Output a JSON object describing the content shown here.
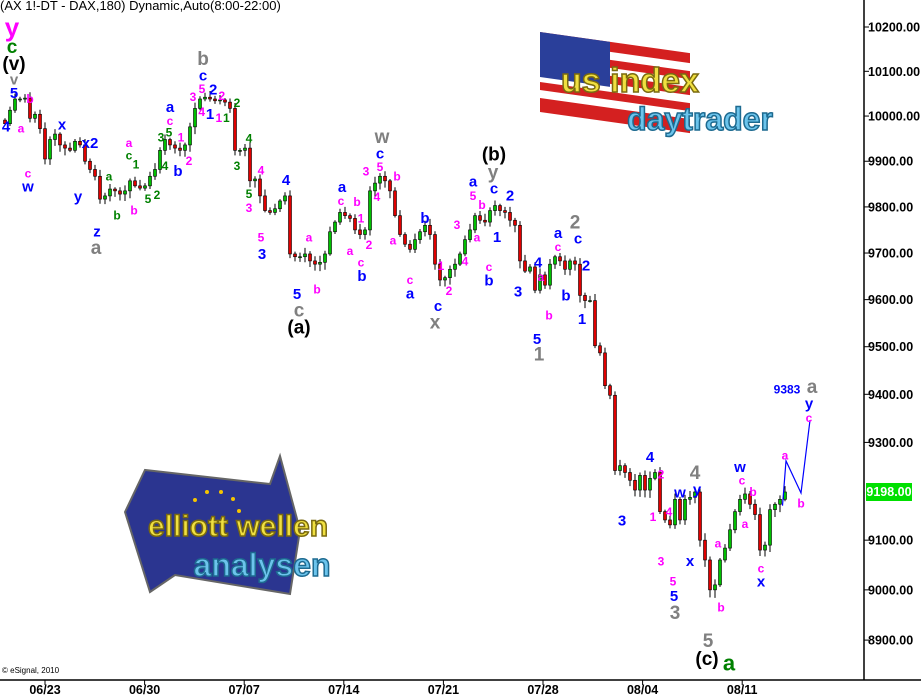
{
  "header": {
    "title": "(AX 1!-DT - DAX,180) Dynamic,Auto(8:00-22:00)"
  },
  "footer": {
    "copyright": "© eSignal, 2010"
  },
  "logos": {
    "us": {
      "line1": "us index",
      "line2": "daytrader"
    },
    "eu": {
      "line1": "elliott wellen",
      "line2": "analysen"
    }
  },
  "colors": {
    "blue": "#0000ff",
    "magenta": "#ff00ff",
    "green": "#008000",
    "gray": "#808080",
    "black": "#000000",
    "up": "#00c000",
    "down": "#e00000",
    "last_badge": "#00e000",
    "projection": "#0000ff"
  },
  "chart_data": {
    "type": "candlestick",
    "title": "",
    "y_scale": "log",
    "ylim": [
      8850,
      10230
    ],
    "y_ticks": [
      {
        "value": 10200,
        "label": "10200.00"
      },
      {
        "value": 10100,
        "label": "10100.00"
      },
      {
        "value": 10000,
        "label": "10000.00"
      },
      {
        "value": 9900,
        "label": "9900.00"
      },
      {
        "value": 9800,
        "label": "9800.00"
      },
      {
        "value": 9700,
        "label": "9700.00"
      },
      {
        "value": 9600,
        "label": "9600.00"
      },
      {
        "value": 9500,
        "label": "9500.00"
      },
      {
        "value": 9400,
        "label": "9400.00"
      },
      {
        "value": 9300,
        "label": "9300.00"
      },
      {
        "value": 9100,
        "label": "9100.00"
      },
      {
        "value": 9000,
        "label": "9000.00"
      },
      {
        "value": 8900,
        "label": "8900.00"
      }
    ],
    "x_ticks": [
      "06/23",
      "06/30",
      "07/07",
      "07/14",
      "07/21",
      "07/28",
      "08/04",
      "08/11"
    ],
    "last_price": {
      "value": 9198,
      "label": "9198.00"
    },
    "closes": [
      9983,
      10013,
      10038,
      10038,
      10040,
      9995,
      10004,
      9972,
      9905,
      9948,
      9960,
      9936,
      9929,
      9924,
      9944,
      9936,
      9900,
      9882,
      9867,
      9817,
      9824,
      9839,
      9835,
      9828,
      9835,
      9857,
      9846,
      9841,
      9846,
      9867,
      9882,
      9924,
      9948,
      9936,
      9929,
      9924,
      9936,
      9976,
      10017,
      10038,
      10042,
      10038,
      10034,
      10036,
      10031,
      10017,
      9924,
      9924,
      9929,
      9857,
      9861,
      9824,
      9792,
      9788,
      9796,
      9813,
      9824,
      9698,
      9692,
      9692,
      9698,
      9683,
      9676,
      9680,
      9698,
      9746,
      9767,
      9788,
      9781,
      9775,
      9750,
      9740,
      9750,
      9835,
      9852,
      9867,
      9857,
      9835,
      9781,
      9740,
      9719,
      9708,
      9729,
      9746,
      9760,
      9740,
      9676,
      9642,
      9647,
      9665,
      9676,
      9698,
      9729,
      9750,
      9781,
      9771,
      9767,
      9792,
      9803,
      9792,
      9788,
      9771,
      9760,
      9683,
      9661,
      9670,
      9620,
      9653,
      9631,
      9676,
      9692,
      9683,
      9665,
      9683,
      9676,
      9609,
      9598,
      9598,
      9502,
      9487,
      9418,
      9398,
      9242,
      9252,
      9238,
      9222,
      9202,
      9232,
      9202,
      9226,
      9238,
      9158,
      9141,
      9131,
      9183,
      9141,
      9183,
      9187,
      9198,
      9100,
      9060,
      9000,
      9010,
      9060,
      9084,
      9121,
      9158,
      9183,
      9194,
      9173,
      9152,
      9080,
      9090,
      9162,
      9173,
      9183,
      9198
    ],
    "projection": [
      [
        155.5,
        9170
      ],
      [
        156.2,
        9262
      ],
      [
        159.2,
        9196
      ],
      [
        161,
        9346
      ]
    ],
    "annotations": [
      [
        "y",
        "magenta",
        "xl",
        1.4,
        10227
      ],
      [
        "c",
        "green",
        "l",
        1.4,
        10175
      ],
      [
        "(v)",
        "black",
        "l",
        1.8,
        10132
      ],
      [
        "v",
        "gray",
        "m",
        1.8,
        10098
      ],
      [
        "5",
        "blue",
        "m",
        1.8,
        10063
      ],
      [
        "4",
        "blue",
        "m",
        0.2,
        9976
      ],
      [
        "a",
        "magenta",
        "s",
        3.2,
        9972
      ],
      [
        "b",
        "magenta",
        "s",
        5,
        10038
      ],
      [
        "c",
        "magenta",
        "s",
        4.6,
        9869
      ],
      [
        "w",
        "blue",
        "m",
        4.6,
        9847
      ],
      [
        "x",
        "blue",
        "m",
        11.4,
        9980
      ],
      [
        "x2",
        "blue",
        "m",
        17,
        9939
      ],
      [
        "y",
        "blue",
        "m",
        14.6,
        9822
      ],
      [
        "z",
        "blue",
        "m",
        18.4,
        9744
      ],
      [
        "a",
        "gray",
        "l",
        18.2,
        9712
      ],
      [
        "a",
        "green",
        "s",
        20.8,
        9867
      ],
      [
        "b",
        "green",
        "s",
        22.4,
        9781
      ],
      [
        "c",
        "green",
        "s",
        24.8,
        9917
      ],
      [
        "a",
        "magenta",
        "s",
        24.8,
        9936
      ],
      [
        "1",
        "green",
        "s",
        26.2,
        9893
      ],
      [
        "b",
        "magenta",
        "s",
        25.8,
        9792
      ],
      [
        "5",
        "green",
        "s",
        28.6,
        9817
      ],
      [
        "2",
        "green",
        "s",
        30.4,
        9826
      ],
      [
        "4",
        "green",
        "s",
        32,
        9889
      ],
      [
        "3",
        "green",
        "s",
        31.2,
        9952
      ],
      [
        "5",
        "green",
        "s",
        32.8,
        9972
      ],
      [
        "a",
        "blue",
        "m",
        33,
        10009
      ],
      [
        "c",
        "magenta",
        "s",
        33,
        9991
      ],
      [
        "1",
        "magenta",
        "s",
        35.2,
        9952
      ],
      [
        "b",
        "blue",
        "m",
        34.6,
        9878
      ],
      [
        "2",
        "magenta",
        "s",
        36.8,
        9900
      ],
      [
        "b",
        "gray",
        "l",
        39.6,
        10119
      ],
      [
        "c",
        "blue",
        "m",
        39.6,
        10092
      ],
      [
        "5",
        "magenta",
        "s",
        39.4,
        10065
      ],
      [
        "3",
        "magenta",
        "s",
        37.6,
        10043
      ],
      [
        "4",
        "magenta",
        "s",
        40,
        10009
      ],
      [
        "1",
        "blue",
        "m",
        41,
        10003
      ],
      [
        "2",
        "blue",
        "m",
        41.8,
        10058
      ],
      [
        "1",
        "magenta",
        "s",
        42.6,
        9996
      ],
      [
        "2",
        "magenta",
        "s",
        43.2,
        10045
      ],
      [
        "1",
        "green",
        "s",
        43.8,
        9996
      ],
      [
        "2",
        "green",
        "s",
        46.4,
        10029
      ],
      [
        "4",
        "green",
        "s",
        48.8,
        9950
      ],
      [
        "3",
        "green",
        "s",
        46.4,
        9889
      ],
      [
        "5",
        "green",
        "s",
        48.8,
        9828
      ],
      [
        "3",
        "magenta",
        "s",
        48.8,
        9798
      ],
      [
        "4",
        "magenta",
        "s",
        51.2,
        9880
      ],
      [
        "5",
        "magenta",
        "s",
        51.2,
        9734
      ],
      [
        "3",
        "blue",
        "m",
        51.4,
        9697
      ],
      [
        "4",
        "blue",
        "m",
        56.2,
        9858
      ],
      [
        "5",
        "blue",
        "m",
        58.4,
        9606
      ],
      [
        "c",
        "gray",
        "l",
        58.8,
        9576
      ],
      [
        "(a)",
        "black",
        "l",
        58.8,
        9543
      ],
      [
        "a",
        "magenta",
        "s",
        60.8,
        9734
      ],
      [
        "b",
        "magenta",
        "s",
        62.4,
        9622
      ],
      [
        "a",
        "blue",
        "m",
        67.4,
        9839
      ],
      [
        "c",
        "magenta",
        "s",
        67.2,
        9817
      ],
      [
        "b",
        "magenta",
        "s",
        70.4,
        9811
      ],
      [
        "1",
        "magenta",
        "s",
        71.2,
        9775
      ],
      [
        "a",
        "magenta",
        "s",
        69,
        9704
      ],
      [
        "2",
        "magenta",
        "s",
        72.8,
        9717
      ],
      [
        "c",
        "magenta",
        "s",
        71.2,
        9676
      ],
      [
        "b",
        "blue",
        "m",
        71.4,
        9653
      ],
      [
        "3",
        "magenta",
        "s",
        72.2,
        9878
      ],
      [
        "4",
        "magenta",
        "s",
        74.4,
        9822
      ],
      [
        "5",
        "magenta",
        "s",
        75,
        9893
      ],
      [
        "c",
        "blue",
        "m",
        75,
        9919
      ],
      [
        "w",
        "gray",
        "l",
        75.4,
        9943
      ],
      [
        "b",
        "magenta",
        "s",
        78.4,
        9867
      ],
      [
        "a",
        "magenta",
        "s",
        77.6,
        9727
      ],
      [
        "c",
        "magenta",
        "s",
        81,
        9640
      ],
      [
        "a",
        "blue",
        "m",
        81,
        9614
      ],
      [
        "b",
        "blue",
        "m",
        84,
        9775
      ],
      [
        "1",
        "magenta",
        "s",
        87.2,
        9672
      ],
      [
        "2",
        "magenta",
        "s",
        88.8,
        9618
      ],
      [
        "c",
        "blue",
        "m",
        86.6,
        9580
      ],
      [
        "x",
        "gray",
        "l",
        86,
        9555
      ],
      [
        "3",
        "magenta",
        "s",
        90.4,
        9761
      ],
      [
        "4",
        "magenta",
        "s",
        92,
        9682
      ],
      [
        "5",
        "magenta",
        "s",
        93.6,
        9828
      ],
      [
        "a",
        "blue",
        "m",
        93.6,
        9850
      ],
      [
        "b",
        "magenta",
        "s",
        95.4,
        9804
      ],
      [
        "a",
        "magenta",
        "s",
        94.4,
        9734
      ],
      [
        "c",
        "magenta",
        "s",
        96.8,
        9670
      ],
      [
        "b",
        "blue",
        "m",
        96.8,
        9640
      ],
      [
        "1",
        "blue",
        "m",
        98.4,
        9734
      ],
      [
        "c",
        "blue",
        "m",
        97.8,
        9839
      ],
      [
        "y",
        "gray",
        "l",
        97.6,
        9874
      ],
      [
        "(b)",
        "black",
        "l",
        97.8,
        9914
      ],
      [
        "2",
        "blue",
        "m",
        101,
        9824
      ],
      [
        "3",
        "blue",
        "m",
        102.6,
        9616
      ],
      [
        "4",
        "blue",
        "m",
        106.6,
        9676
      ],
      [
        "a",
        "magenta",
        "s",
        107.2,
        9651
      ],
      [
        "b",
        "magenta",
        "s",
        108.8,
        9566
      ],
      [
        "5",
        "blue",
        "m",
        106.4,
        9515
      ],
      [
        "1",
        "gray",
        "l",
        106.8,
        9482
      ],
      [
        "a",
        "blue",
        "m",
        110.6,
        9738
      ],
      [
        "c",
        "magenta",
        "s",
        110.6,
        9717
      ],
      [
        "b",
        "blue",
        "m",
        112.2,
        9608
      ],
      [
        "2",
        "gray",
        "l",
        114,
        9765
      ],
      [
        "c",
        "blue",
        "m",
        114.6,
        9730
      ],
      [
        "2",
        "blue",
        "m",
        116.2,
        9672
      ],
      [
        "1",
        "blue",
        "m",
        115.4,
        9558
      ],
      [
        "3",
        "blue",
        "m",
        123.4,
        9139
      ],
      [
        "4",
        "blue",
        "m",
        129,
        9269
      ],
      [
        "2",
        "magenta",
        "s",
        131.2,
        9234
      ],
      [
        "1",
        "magenta",
        "s",
        129.6,
        9147
      ],
      [
        "4",
        "magenta",
        "s",
        132.8,
        9157
      ],
      [
        "3",
        "magenta",
        "s",
        131.2,
        9057
      ],
      [
        "w",
        "blue",
        "m",
        135,
        9196
      ],
      [
        "4",
        "gray",
        "l",
        138,
        9234
      ],
      [
        "y",
        "blue",
        "m",
        138.4,
        9204
      ],
      [
        "x",
        "blue",
        "m",
        137,
        9057
      ],
      [
        "5",
        "magenta",
        "s",
        133.6,
        9017
      ],
      [
        "5",
        "blue",
        "m",
        133.8,
        8987
      ],
      [
        "3",
        "gray",
        "l",
        134,
        8953
      ],
      [
        "5",
        "gray",
        "l",
        140.6,
        8894
      ],
      [
        "(c)",
        "black",
        "l",
        140.4,
        8864
      ],
      [
        "a",
        "green",
        "xl2",
        144.8,
        8855
      ],
      [
        "a",
        "magenta",
        "s",
        142.6,
        9093
      ],
      [
        "b",
        "magenta",
        "s",
        143.2,
        8965
      ],
      [
        "w",
        "blue",
        "m",
        147,
        9248
      ],
      [
        "c",
        "magenta",
        "s",
        147.4,
        9222
      ],
      [
        "b",
        "magenta",
        "s",
        149.6,
        9198
      ],
      [
        "a",
        "magenta",
        "s",
        148,
        9133
      ],
      [
        "c",
        "magenta",
        "s",
        151.2,
        9039
      ],
      [
        "x",
        "blue",
        "m",
        151.2,
        9019
      ],
      [
        "a",
        "magenta",
        "s",
        156,
        9273
      ],
      [
        "b",
        "magenta",
        "s",
        159.2,
        9174
      ],
      [
        "y",
        "blue",
        "m",
        160.8,
        9382
      ],
      [
        "c",
        "magenta",
        "s",
        160.8,
        9351
      ],
      [
        "9383",
        "blue",
        "plain",
        156.4,
        9410
      ],
      [
        "a",
        "gray",
        "l",
        161.4,
        9412
      ]
    ]
  }
}
